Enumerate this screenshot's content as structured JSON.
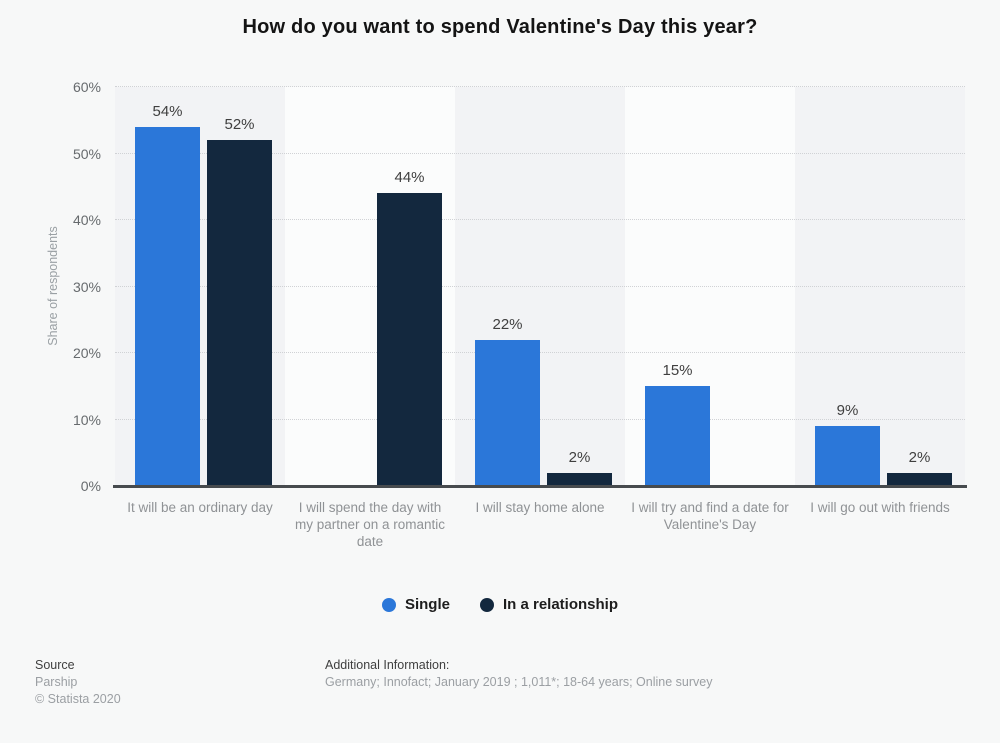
{
  "title": "How do you want to spend Valentine's Day this year?",
  "colors": {
    "background": "#f7f8f8",
    "single_blue": "#2b77d9",
    "relationship_navy": "#13283e"
  },
  "chart_data": {
    "type": "bar",
    "title": "How do you want to spend Valentine's Day this year?",
    "xlabel": "",
    "ylabel": "Share of respondents",
    "ylim": [
      0,
      60
    ],
    "yticks": [
      0,
      10,
      20,
      30,
      40,
      50,
      60
    ],
    "ytick_suffix": "%",
    "grid": "horizontal-dotted",
    "legend_position": "bottom-center",
    "value_label_suffix": "%",
    "categories": [
      "It will be an ordinary day",
      "I will spend the day with my partner on a romantic date",
      "I will stay home alone",
      "I will try and find a date for Valentine's Day",
      "I will go out with friends"
    ],
    "series": [
      {
        "name": "Single",
        "color": "#2b77d9",
        "values": [
          54,
          null,
          22,
          15,
          9
        ]
      },
      {
        "name": "In a relationship",
        "color": "#13283e",
        "values": [
          52,
          44,
          2,
          null,
          2
        ]
      }
    ]
  },
  "footer": {
    "source_label": "Source",
    "source_value": "Parship",
    "copyright": "© Statista 2020",
    "additional_info_label": "Additional Information:",
    "additional_info_value": "Germany; Innofact; January 2019 ; 1,011*; 18-64 years; Online survey"
  }
}
